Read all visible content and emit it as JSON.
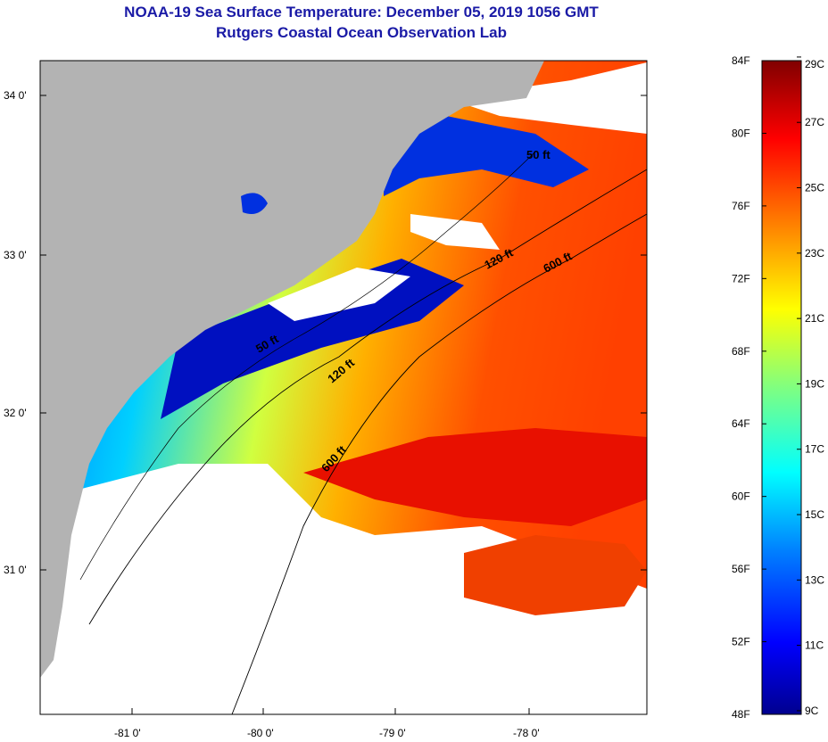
{
  "header": {
    "title": "NOAA-19 Sea Surface Temperature:  December 05, 2019 1056 GMT",
    "subtitle": "Rutgers Coastal Ocean Observation Lab"
  },
  "map": {
    "lat_labels": [
      "34 0'",
      "33 0'",
      "32 0'",
      "31 0'"
    ],
    "lon_labels": [
      "-81 0'",
      "-80 0'",
      "-79 0'",
      "-78 0'"
    ],
    "isobath_labels": [
      "50 ft",
      "120 ft",
      "600 ft",
      "50 ft",
      "120 ft",
      "600 ft"
    ]
  },
  "colorbar": {
    "fahrenheit_labels": [
      "84F",
      "80F",
      "76F",
      "72F",
      "68F",
      "64F",
      "60F",
      "56F",
      "52F",
      "48F"
    ],
    "celsius_labels": [
      "29C",
      "27C",
      "25C",
      "23C",
      "21C",
      "19C",
      "17C",
      "15C",
      "13C",
      "11C",
      "9C"
    ],
    "colors": [
      "#00008f",
      "#0000ff",
      "#0080ff",
      "#00ffff",
      "#80ff80",
      "#ffff00",
      "#ff8000",
      "#ff0000",
      "#800000"
    ]
  }
}
